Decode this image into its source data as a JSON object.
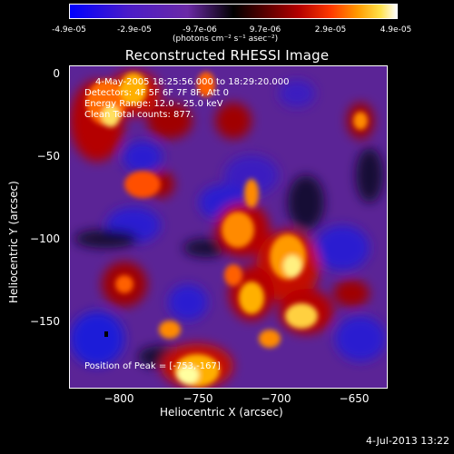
{
  "colorbar": {
    "tick_labels": [
      "-4.9e-05",
      "-2.9e-05",
      "-9.7e-06",
      "9.7e-06",
      "2.9e-05",
      "4.9e-05"
    ],
    "tick_values": [
      -4.9e-05,
      -2.9e-05,
      -9.7e-06,
      9.7e-06,
      2.9e-05,
      4.9e-05
    ],
    "range": [
      -4.9e-05,
      4.9e-05
    ],
    "units": "(photons cm⁻² s⁻¹ asec⁻²)",
    "colormap": [
      "#0000ff",
      "#4b1cc8",
      "#6b2aa6",
      "#000000",
      "#5a0000",
      "#b40000",
      "#ff3a00",
      "#ff9a00",
      "#ffe24a",
      "#ffffff"
    ]
  },
  "plot": {
    "title": "Reconstructed RHESSI Image",
    "xlabel": "Heliocentric X (arcsec)",
    "ylabel": "Heliocentric Y (arcsec)",
    "x_tick_labels": [
      "−800",
      "−750",
      "−700",
      "−650"
    ],
    "x_tick_values": [
      -800,
      -750,
      -700,
      -650
    ],
    "y_tick_labels": [
      "0",
      "−50",
      "−100",
      "−150"
    ],
    "y_tick_values": [
      0,
      -50,
      -100,
      -150
    ],
    "xlim": [
      -835,
      -635
    ],
    "ylim": [
      -190,
      5
    ],
    "annotations": {
      "time_range": "4-May-2005 18:25:56.000 to 18:29:20.000",
      "detectors": "Detectors: 4F 5F 6F 7F 8F, Att 0",
      "energy": "Energy Range: 12.0 - 25.0 keV",
      "clean": "Clean    Total counts: 877.",
      "peak": "Position of Peak = [-753,-167]"
    }
  },
  "footer": {
    "date": "4-Jul-2013 13:22"
  }
}
